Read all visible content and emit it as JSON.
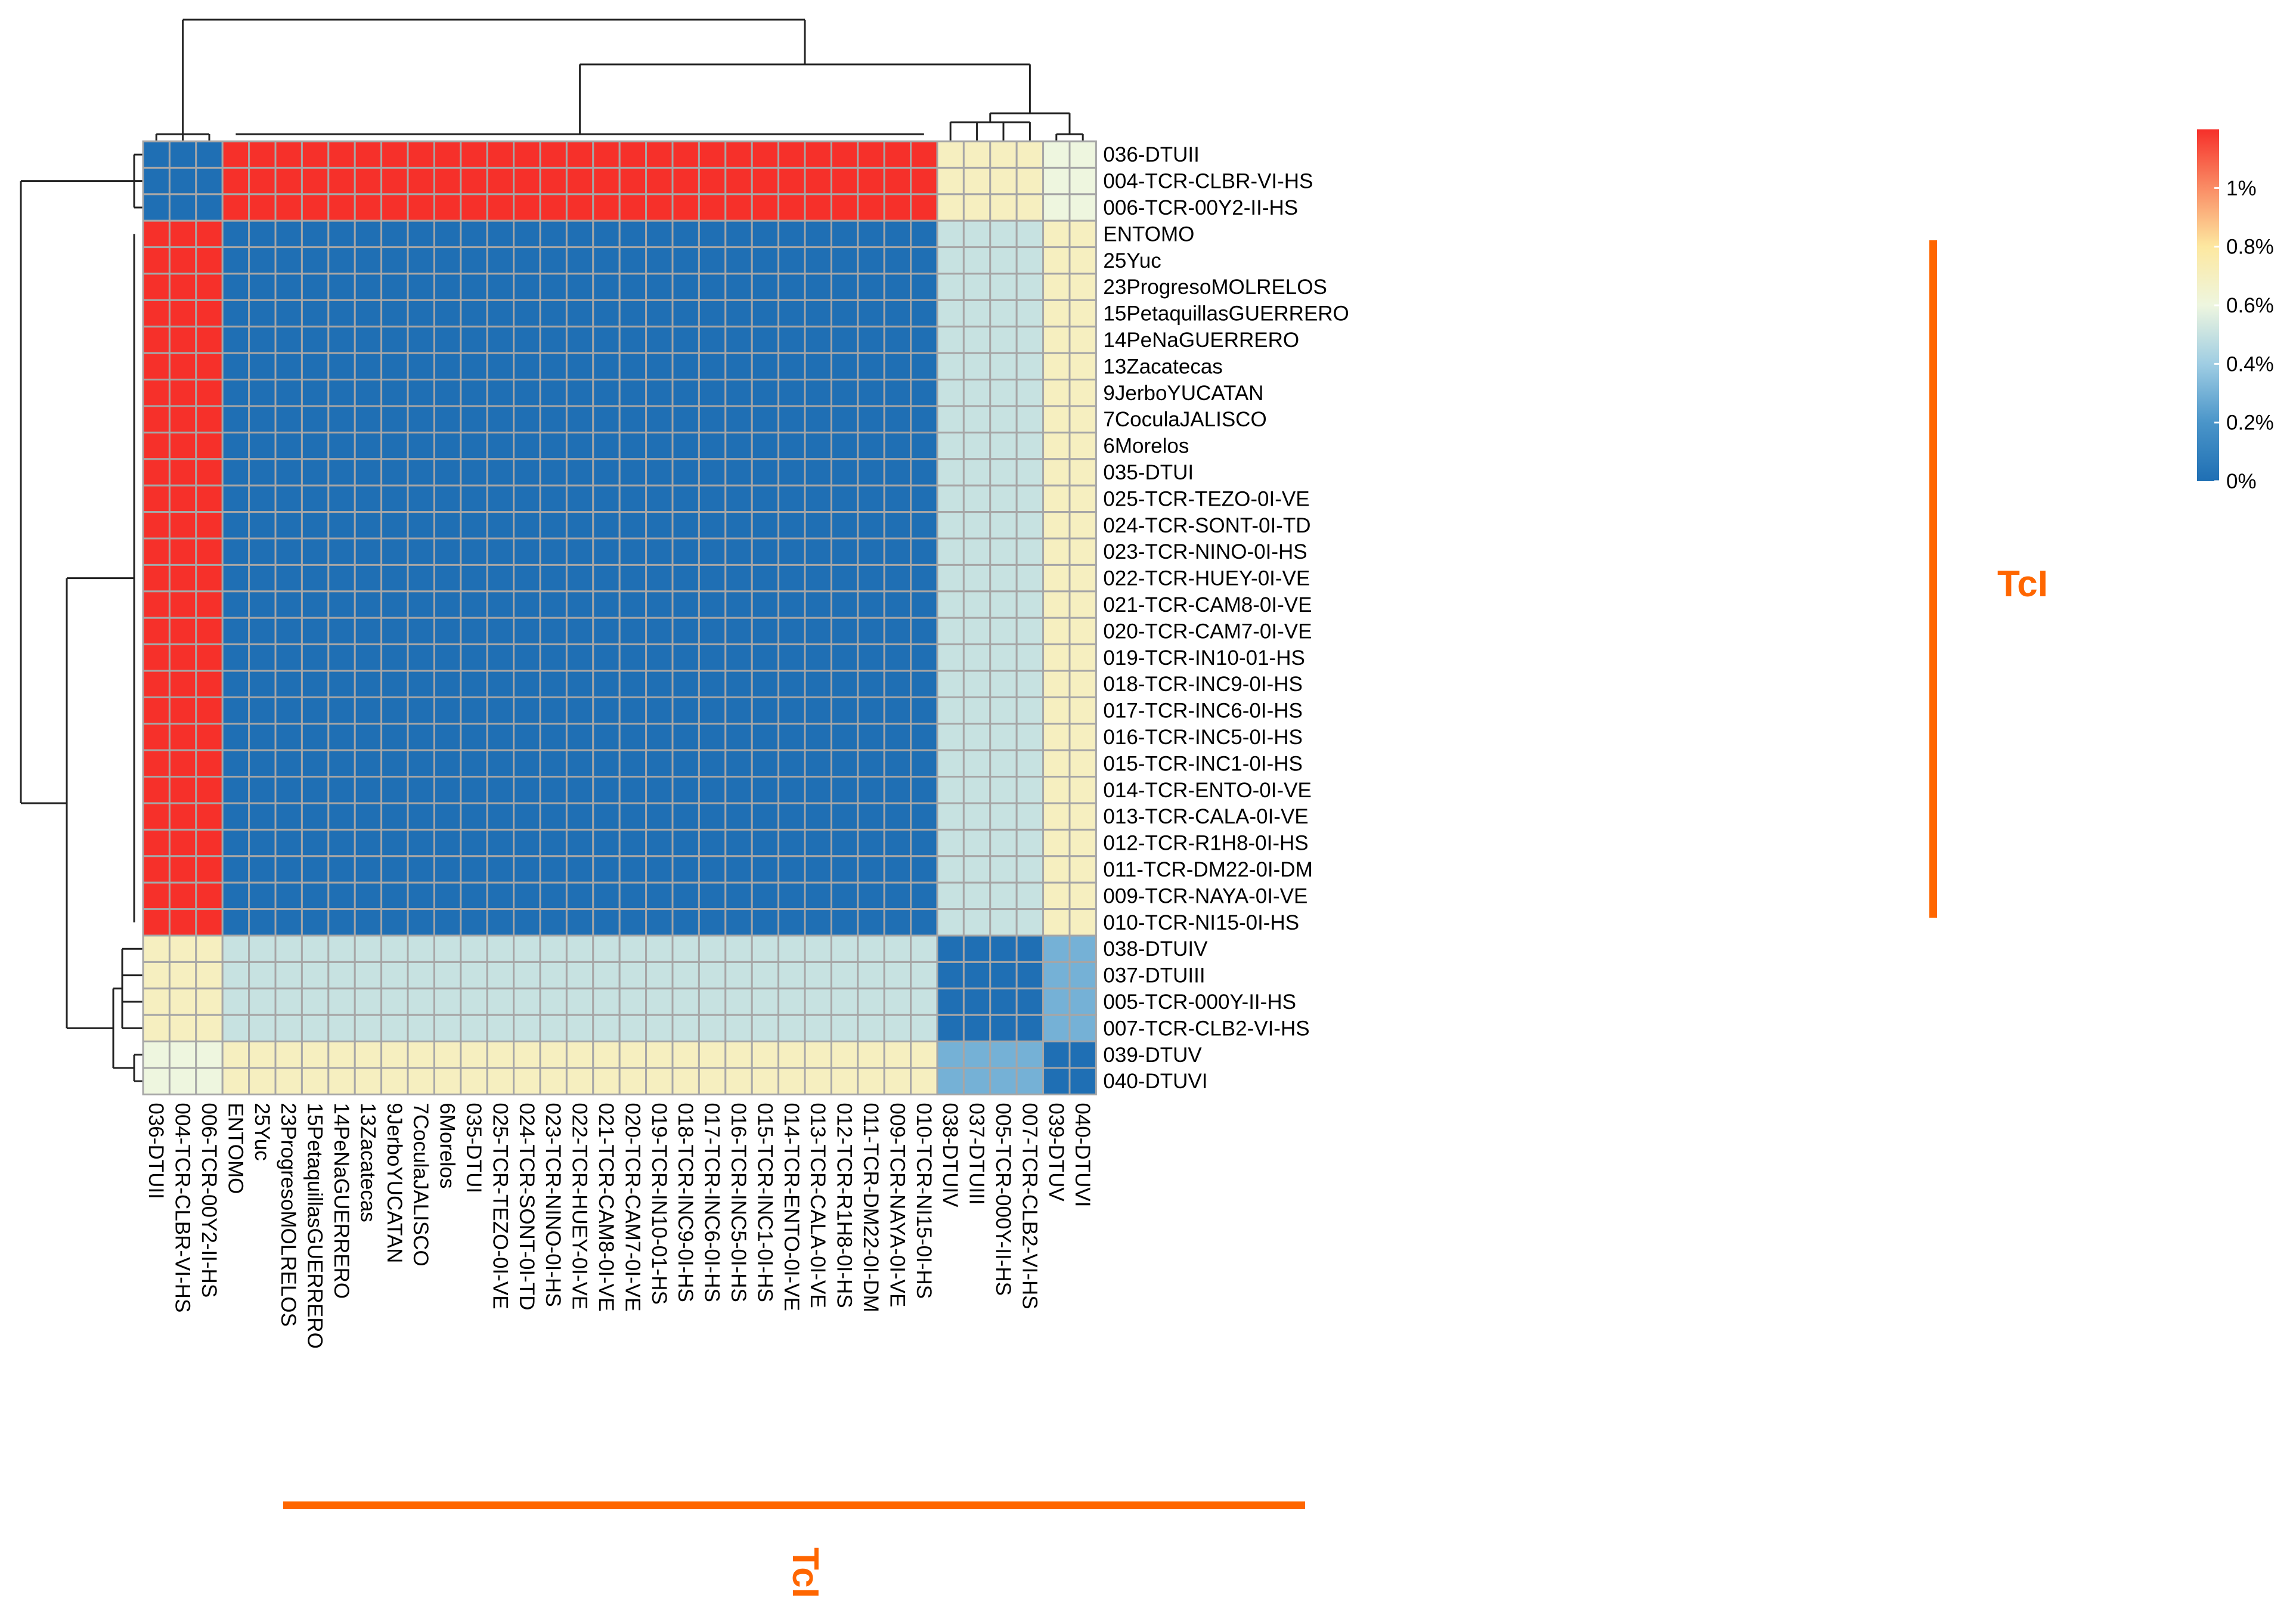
{
  "chart_data": {
    "type": "heatmap",
    "title": "",
    "labels": [
      "036-DTUII",
      "004-TCR-CLBR-VI-HS",
      "006-TCR-00Y2-II-HS",
      "ENTOMO",
      "25Yuc",
      "23ProgresoMOLRELOS",
      "15PetaquillasGUERRERO",
      "14PeNaGUERRERO",
      "13Zacatecas",
      "9JerboYUCATAN",
      "7CoculaJALISCO",
      "6Morelos",
      "035-DTUI",
      "025-TCR-TEZO-0I-VE",
      "024-TCR-SONT-0I-TD",
      "023-TCR-NINO-0I-HS",
      "022-TCR-HUEY-0I-VE",
      "021-TCR-CAM8-0I-VE",
      "020-TCR-CAM7-0I-VE",
      "019-TCR-IN10-01-HS",
      "018-TCR-INC9-0I-HS",
      "017-TCR-INC6-0I-HS",
      "016-TCR-INC5-0I-HS",
      "015-TCR-INC1-0I-HS",
      "014-TCR-ENTO-0I-VE",
      "013-TCR-CALA-0I-VE",
      "012-TCR-R1H8-0I-HS",
      "011-TCR-DM22-0I-DM",
      "009-TCR-NAYA-0I-VE",
      "010-TCR-NI15-0I-HS",
      "038-DTUIV",
      "037-DTUIII",
      "005-TCR-000Y-II-HS",
      "007-TCR-CLB2-VI-HS",
      "039-DTUV",
      "040-DTUVI"
    ],
    "cluster_sizes": [
      3,
      27,
      4,
      2
    ],
    "block_values_percent": [
      [
        0.0,
        1.2,
        0.7,
        0.6
      ],
      [
        1.2,
        0.0,
        0.5,
        0.7
      ],
      [
        0.7,
        0.5,
        0.0,
        0.3
      ],
      [
        0.6,
        0.7,
        0.3,
        0.0
      ]
    ],
    "block_note": "symmetric distance matrix; value of each cell given by its row-cluster / column-cluster block",
    "color_scale": {
      "stops": [
        {
          "value": 0.0,
          "color": "#1f6fb4"
        },
        {
          "value": 0.2,
          "color": "#4a95c9"
        },
        {
          "value": 0.4,
          "color": "#9fcde3"
        },
        {
          "value": 0.6,
          "color": "#eef6df"
        },
        {
          "value": 0.8,
          "color": "#fde8a0"
        },
        {
          "value": 1.2,
          "color": "#f6302a"
        }
      ],
      "min": 0.0,
      "max": 1.2,
      "ticks": [
        {
          "value": 0,
          "label": "0%"
        },
        {
          "value": 0.2,
          "label": "0.2%"
        },
        {
          "value": 0.4,
          "label": "0.4%"
        },
        {
          "value": 0.6,
          "label": "0.6%"
        },
        {
          "value": 0.8,
          "label": "0.8%"
        },
        {
          "value": 1.0,
          "label": "1%"
        }
      ]
    },
    "annotations": {
      "row_group_label": "TcI",
      "column_group_label": "TcI",
      "group_color": "#ff6600"
    },
    "dendrogram": "hierarchical clustering tree drawn above columns and to the left of rows"
  }
}
